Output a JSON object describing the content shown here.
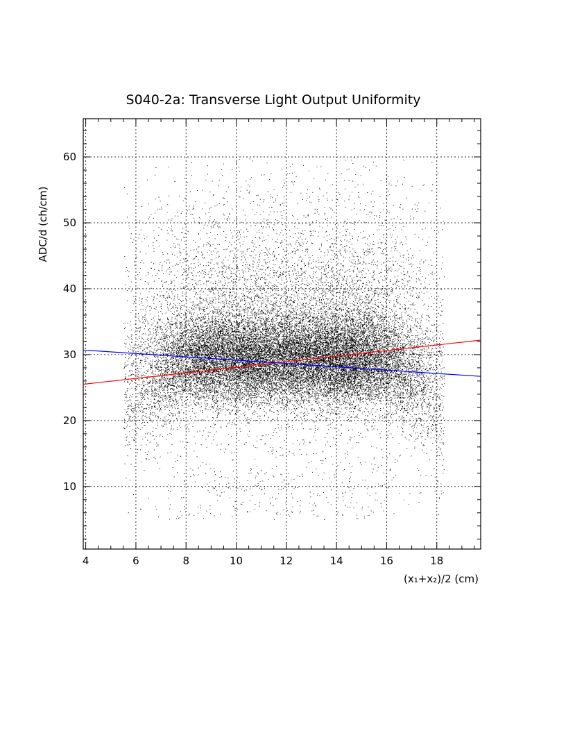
{
  "chart_data": {
    "type": "scatter",
    "title": "S040-2a: Transverse Light Output Uniformity",
    "xlabel": "(x₁+x₂)/2 (cm)",
    "ylabel": "ADC/d (ch/cm)",
    "xlim": [
      3.9,
      19.75
    ],
    "ylim": [
      0.5,
      65.8
    ],
    "x_ticks": [
      4,
      6,
      8,
      10,
      12,
      14,
      16,
      18
    ],
    "y_ticks": [
      10,
      20,
      30,
      40,
      50,
      60
    ],
    "x_tick_labels": [
      "4",
      "6",
      "8",
      "10",
      "12",
      "14",
      "16",
      "18"
    ],
    "y_tick_labels": [
      "10",
      "20",
      "30",
      "40",
      "50",
      "60"
    ],
    "grid": true,
    "legend": "none",
    "scatter_description": {
      "x_range": [
        5.5,
        18.3
      ],
      "y_range": [
        3,
        60
      ],
      "dense_band_y": [
        22,
        36
      ],
      "marker_color": "#000000"
    },
    "series": [
      {
        "kind": "line",
        "color": "#ff0000",
        "x": [
          3.9,
          19.75
        ],
        "y": [
          25.5,
          32.2
        ]
      },
      {
        "kind": "line",
        "color": "#0000ff",
        "x": [
          3.9,
          19.75
        ],
        "y": [
          30.7,
          26.7
        ]
      }
    ]
  }
}
